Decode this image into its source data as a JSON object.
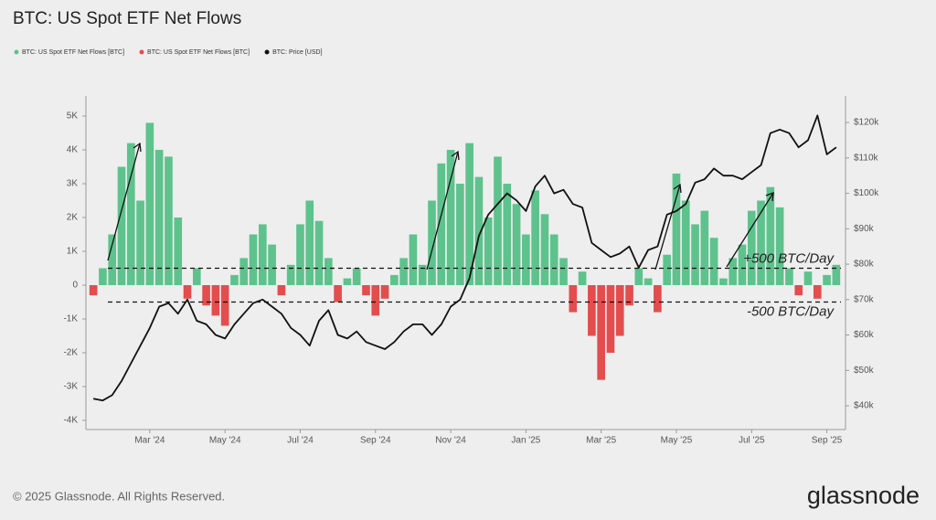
{
  "chart_data": {
    "type": "bar",
    "title": "BTC: US Spot ETF Net Flows",
    "categories": [
      null,
      null,
      null,
      null,
      null,
      null,
      "Mar '24",
      null,
      null,
      null,
      null,
      null,
      null,
      null,
      "May '24",
      null,
      null,
      null,
      null,
      null,
      null,
      null,
      "Jul '24",
      null,
      null,
      null,
      null,
      null,
      null,
      null,
      "Sep '24",
      null,
      null,
      null,
      null,
      null,
      null,
      null,
      "Nov '24",
      null,
      null,
      null,
      null,
      null,
      null,
      null,
      "Jan '25",
      null,
      null,
      null,
      null,
      null,
      null,
      null,
      "Mar '25",
      null,
      null,
      null,
      null,
      null,
      null,
      null,
      "May '25",
      null,
      null,
      null,
      null,
      null,
      null,
      null,
      "Jul '25",
      null,
      null,
      null,
      null,
      null,
      null,
      null,
      "Sep '25",
      null
    ],
    "series": [
      {
        "name": "BTC: US Spot ETF Net Flows [BTC]",
        "color": "#5ec28d",
        "values": [
          null,
          500,
          1500,
          3500,
          4200,
          2500,
          4800,
          4000,
          3800,
          2000,
          null,
          500,
          null,
          null,
          null,
          300,
          800,
          1500,
          1800,
          1200,
          null,
          600,
          1800,
          2500,
          1900,
          800,
          null,
          200,
          500,
          null,
          null,
          null,
          300,
          800,
          1500,
          600,
          2500,
          3600,
          4000,
          3000,
          4200,
          3200,
          2000,
          3800,
          3000,
          2400,
          1500,
          2800,
          2100,
          1500,
          800,
          null,
          400,
          null,
          null,
          null,
          null,
          null,
          500,
          200,
          null,
          900,
          3300,
          2500,
          1800,
          2200,
          1400,
          200,
          800,
          1200,
          2200,
          2500,
          2900,
          2300,
          500,
          null,
          400,
          null,
          300,
          600
        ]
      },
      {
        "name": "BTC: US Spot ETF Net Flows [BTC]",
        "color": "#e44d4d",
        "values": [
          -300,
          null,
          null,
          null,
          null,
          null,
          null,
          null,
          null,
          null,
          -400,
          null,
          -600,
          -900,
          -1200,
          null,
          null,
          null,
          null,
          null,
          -300,
          null,
          null,
          null,
          null,
          null,
          -500,
          null,
          null,
          -300,
          -900,
          -400,
          null,
          null,
          null,
          null,
          null,
          null,
          null,
          null,
          null,
          null,
          null,
          null,
          null,
          null,
          null,
          null,
          null,
          null,
          null,
          -800,
          null,
          -1500,
          -2800,
          -2000,
          -1500,
          -600,
          null,
          null,
          -800,
          null,
          null,
          null,
          null,
          null,
          null,
          null,
          null,
          null,
          null,
          null,
          null,
          null,
          null,
          -300,
          null,
          -400,
          null,
          null
        ]
      },
      {
        "name": "BTC: Price [USD]",
        "color": "#111111",
        "type": "line",
        "axis": "y2",
        "values": [
          42000,
          41500,
          43000,
          47000,
          52000,
          57000,
          62000,
          68000,
          69000,
          66000,
          70000,
          64000,
          63000,
          60000,
          59000,
          63000,
          66000,
          69000,
          70000,
          68000,
          66000,
          62000,
          60000,
          57000,
          64000,
          67000,
          60000,
          59000,
          61000,
          58000,
          57000,
          56000,
          58000,
          61000,
          63000,
          63000,
          60000,
          63000,
          68000,
          70000,
          76000,
          88000,
          94000,
          97000,
          100000,
          98000,
          95000,
          102000,
          105000,
          100000,
          101000,
          97000,
          96000,
          86000,
          84000,
          82000,
          83000,
          85000,
          79000,
          84000,
          85000,
          94000,
          95000,
          97000,
          103000,
          104000,
          107000,
          105000,
          105000,
          104000,
          106000,
          108000,
          117000,
          118000,
          117000,
          113000,
          115000,
          122000,
          111000,
          113000
        ]
      }
    ],
    "ylim": [
      -4270,
      5595
    ],
    "yticks": [
      {
        "value": -4000,
        "label": "-4K"
      },
      {
        "value": -3000,
        "label": "-3K"
      },
      {
        "value": -2000,
        "label": "-2K"
      },
      {
        "value": -1000,
        "label": "-1K"
      },
      0,
      {
        "value": 1000,
        "label": "1K"
      },
      {
        "value": 2000,
        "label": "2K"
      },
      {
        "value": 3000,
        "label": "3K"
      },
      {
        "value": 4000,
        "label": "4K"
      },
      {
        "value": 5000,
        "label": "5K"
      }
    ],
    "y2lim": [
      33300,
      127500
    ],
    "y2ticks": [
      {
        "value": 40000,
        "label": "$40k"
      },
      {
        "value": 50000,
        "label": "$50k"
      },
      {
        "value": 60000,
        "label": "$60k"
      },
      {
        "value": 70000,
        "label": "$70k"
      },
      {
        "value": 80000,
        "label": "$80k"
      },
      {
        "value": 90000,
        "label": "$90k"
      },
      {
        "value": 100000,
        "label": "$100k"
      },
      {
        "value": 110000,
        "label": "$110k"
      },
      {
        "value": 120000,
        "label": "$120k"
      }
    ],
    "thresholds": [
      {
        "value": 500,
        "label": "+500 BTC/Day"
      },
      {
        "value": -500,
        "label": "-500 BTC/Day"
      }
    ],
    "grid": false
  },
  "footer": {
    "copyright": "© 2025 Glassnode. All Rights Reserved.",
    "brand": "glassnode"
  }
}
